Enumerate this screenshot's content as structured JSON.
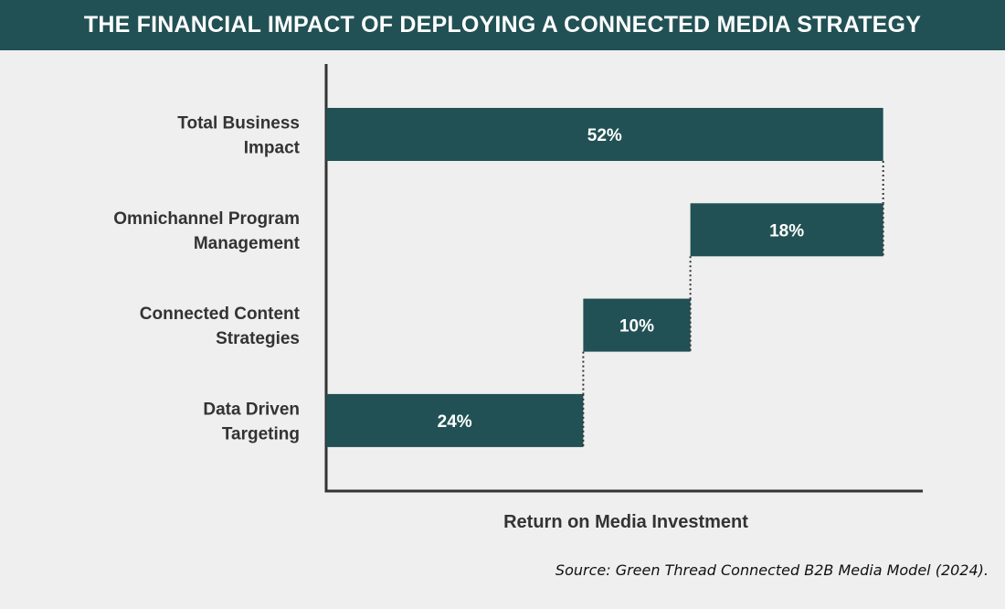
{
  "colors": {
    "bar": "#215154",
    "title_bg": "#215154",
    "axis": "#333333",
    "background": "#efefef"
  },
  "chart_data": {
    "type": "bar",
    "subtype": "waterfall-horizontal",
    "title": "THE FINANCIAL IMPACT OF DEPLOYING A CONNECTED MEDIA STRATEGY",
    "xlabel": "Return on Media Investment",
    "ylabel": "",
    "xlim": [
      0,
      58
    ],
    "categories": [
      [
        "Total Business",
        "Impact"
      ],
      [
        "Omnichannel Program",
        "Management"
      ],
      [
        "Connected Content",
        "Strategies"
      ],
      [
        "Data Driven",
        "Targeting"
      ]
    ],
    "segments": [
      {
        "start": 0,
        "end": 52,
        "value": 52,
        "label": "52%"
      },
      {
        "start": 34,
        "end": 52,
        "value": 18,
        "label": "18%"
      },
      {
        "start": 24,
        "end": 34,
        "value": 10,
        "label": "10%"
      },
      {
        "start": 0,
        "end": 24,
        "value": 24,
        "label": "24%"
      }
    ],
    "source": "Source: Green Thread Connected B2B Media Model (2024)."
  }
}
